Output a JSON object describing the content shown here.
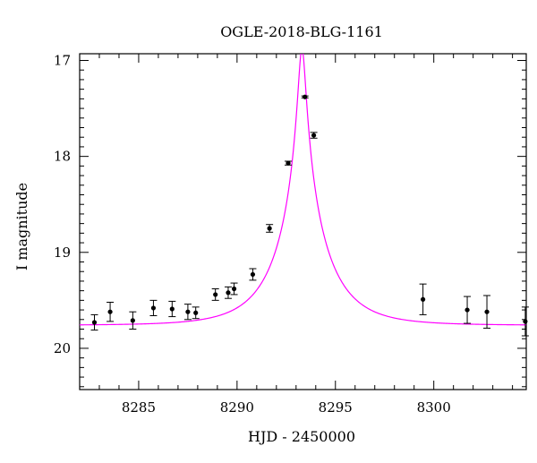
{
  "chart_data": {
    "type": "scatter",
    "title": "OGLE-2018-BLG-1161",
    "xlabel": "HJD - 2450000",
    "ylabel": "I magnitude",
    "xlim": [
      8282.0,
      8304.7
    ],
    "ylim": [
      20.43,
      16.93
    ],
    "y_inverted": true,
    "x_ticks": [
      8285,
      8290,
      8295,
      8300
    ],
    "x_tick_labels": [
      "8285",
      "8290",
      "8295",
      "8300"
    ],
    "y_ticks": [
      17,
      18,
      19,
      20
    ],
    "y_tick_labels": [
      "17",
      "18",
      "19",
      "20"
    ],
    "x_minor_step": 1,
    "y_minor_step": 0.1,
    "grid": false,
    "colors": {
      "points": "#000000",
      "model": "#ff00ff",
      "frame": "#000000"
    },
    "series": [
      {
        "kind": "points_with_errorbars",
        "points": [
          {
            "x": 8282.75,
            "y": 19.73,
            "err": 0.08
          },
          {
            "x": 8283.55,
            "y": 19.62,
            "err": 0.1
          },
          {
            "x": 8284.7,
            "y": 19.71,
            "err": 0.09
          },
          {
            "x": 8285.75,
            "y": 19.58,
            "err": 0.08
          },
          {
            "x": 8286.7,
            "y": 19.59,
            "err": 0.08
          },
          {
            "x": 8287.5,
            "y": 19.62,
            "err": 0.08
          },
          {
            "x": 8287.9,
            "y": 19.63,
            "err": 0.06
          },
          {
            "x": 8288.9,
            "y": 19.44,
            "err": 0.06
          },
          {
            "x": 8289.55,
            "y": 19.42,
            "err": 0.06
          },
          {
            "x": 8289.85,
            "y": 19.38,
            "err": 0.06
          },
          {
            "x": 8290.8,
            "y": 19.23,
            "err": 0.06
          },
          {
            "x": 8291.65,
            "y": 18.75,
            "err": 0.04
          },
          {
            "x": 8292.6,
            "y": 18.07,
            "err": 0.02
          },
          {
            "x": 8293.45,
            "y": 17.38,
            "err": 0.01
          },
          {
            "x": 8293.9,
            "y": 17.78,
            "err": 0.03
          },
          {
            "x": 8299.45,
            "y": 19.49,
            "err": 0.16
          },
          {
            "x": 8301.7,
            "y": 19.6,
            "err": 0.14
          },
          {
            "x": 8302.7,
            "y": 19.62,
            "err": 0.17
          },
          {
            "x": 8304.65,
            "y": 19.72,
            "err": 0.15
          }
        ]
      },
      {
        "kind": "model_curve",
        "t0": 8293.3,
        "tE": 2.5,
        "u0": 0.07,
        "base_mag": 19.76,
        "x_range": [
          8282.0,
          8304.7
        ]
      }
    ]
  }
}
